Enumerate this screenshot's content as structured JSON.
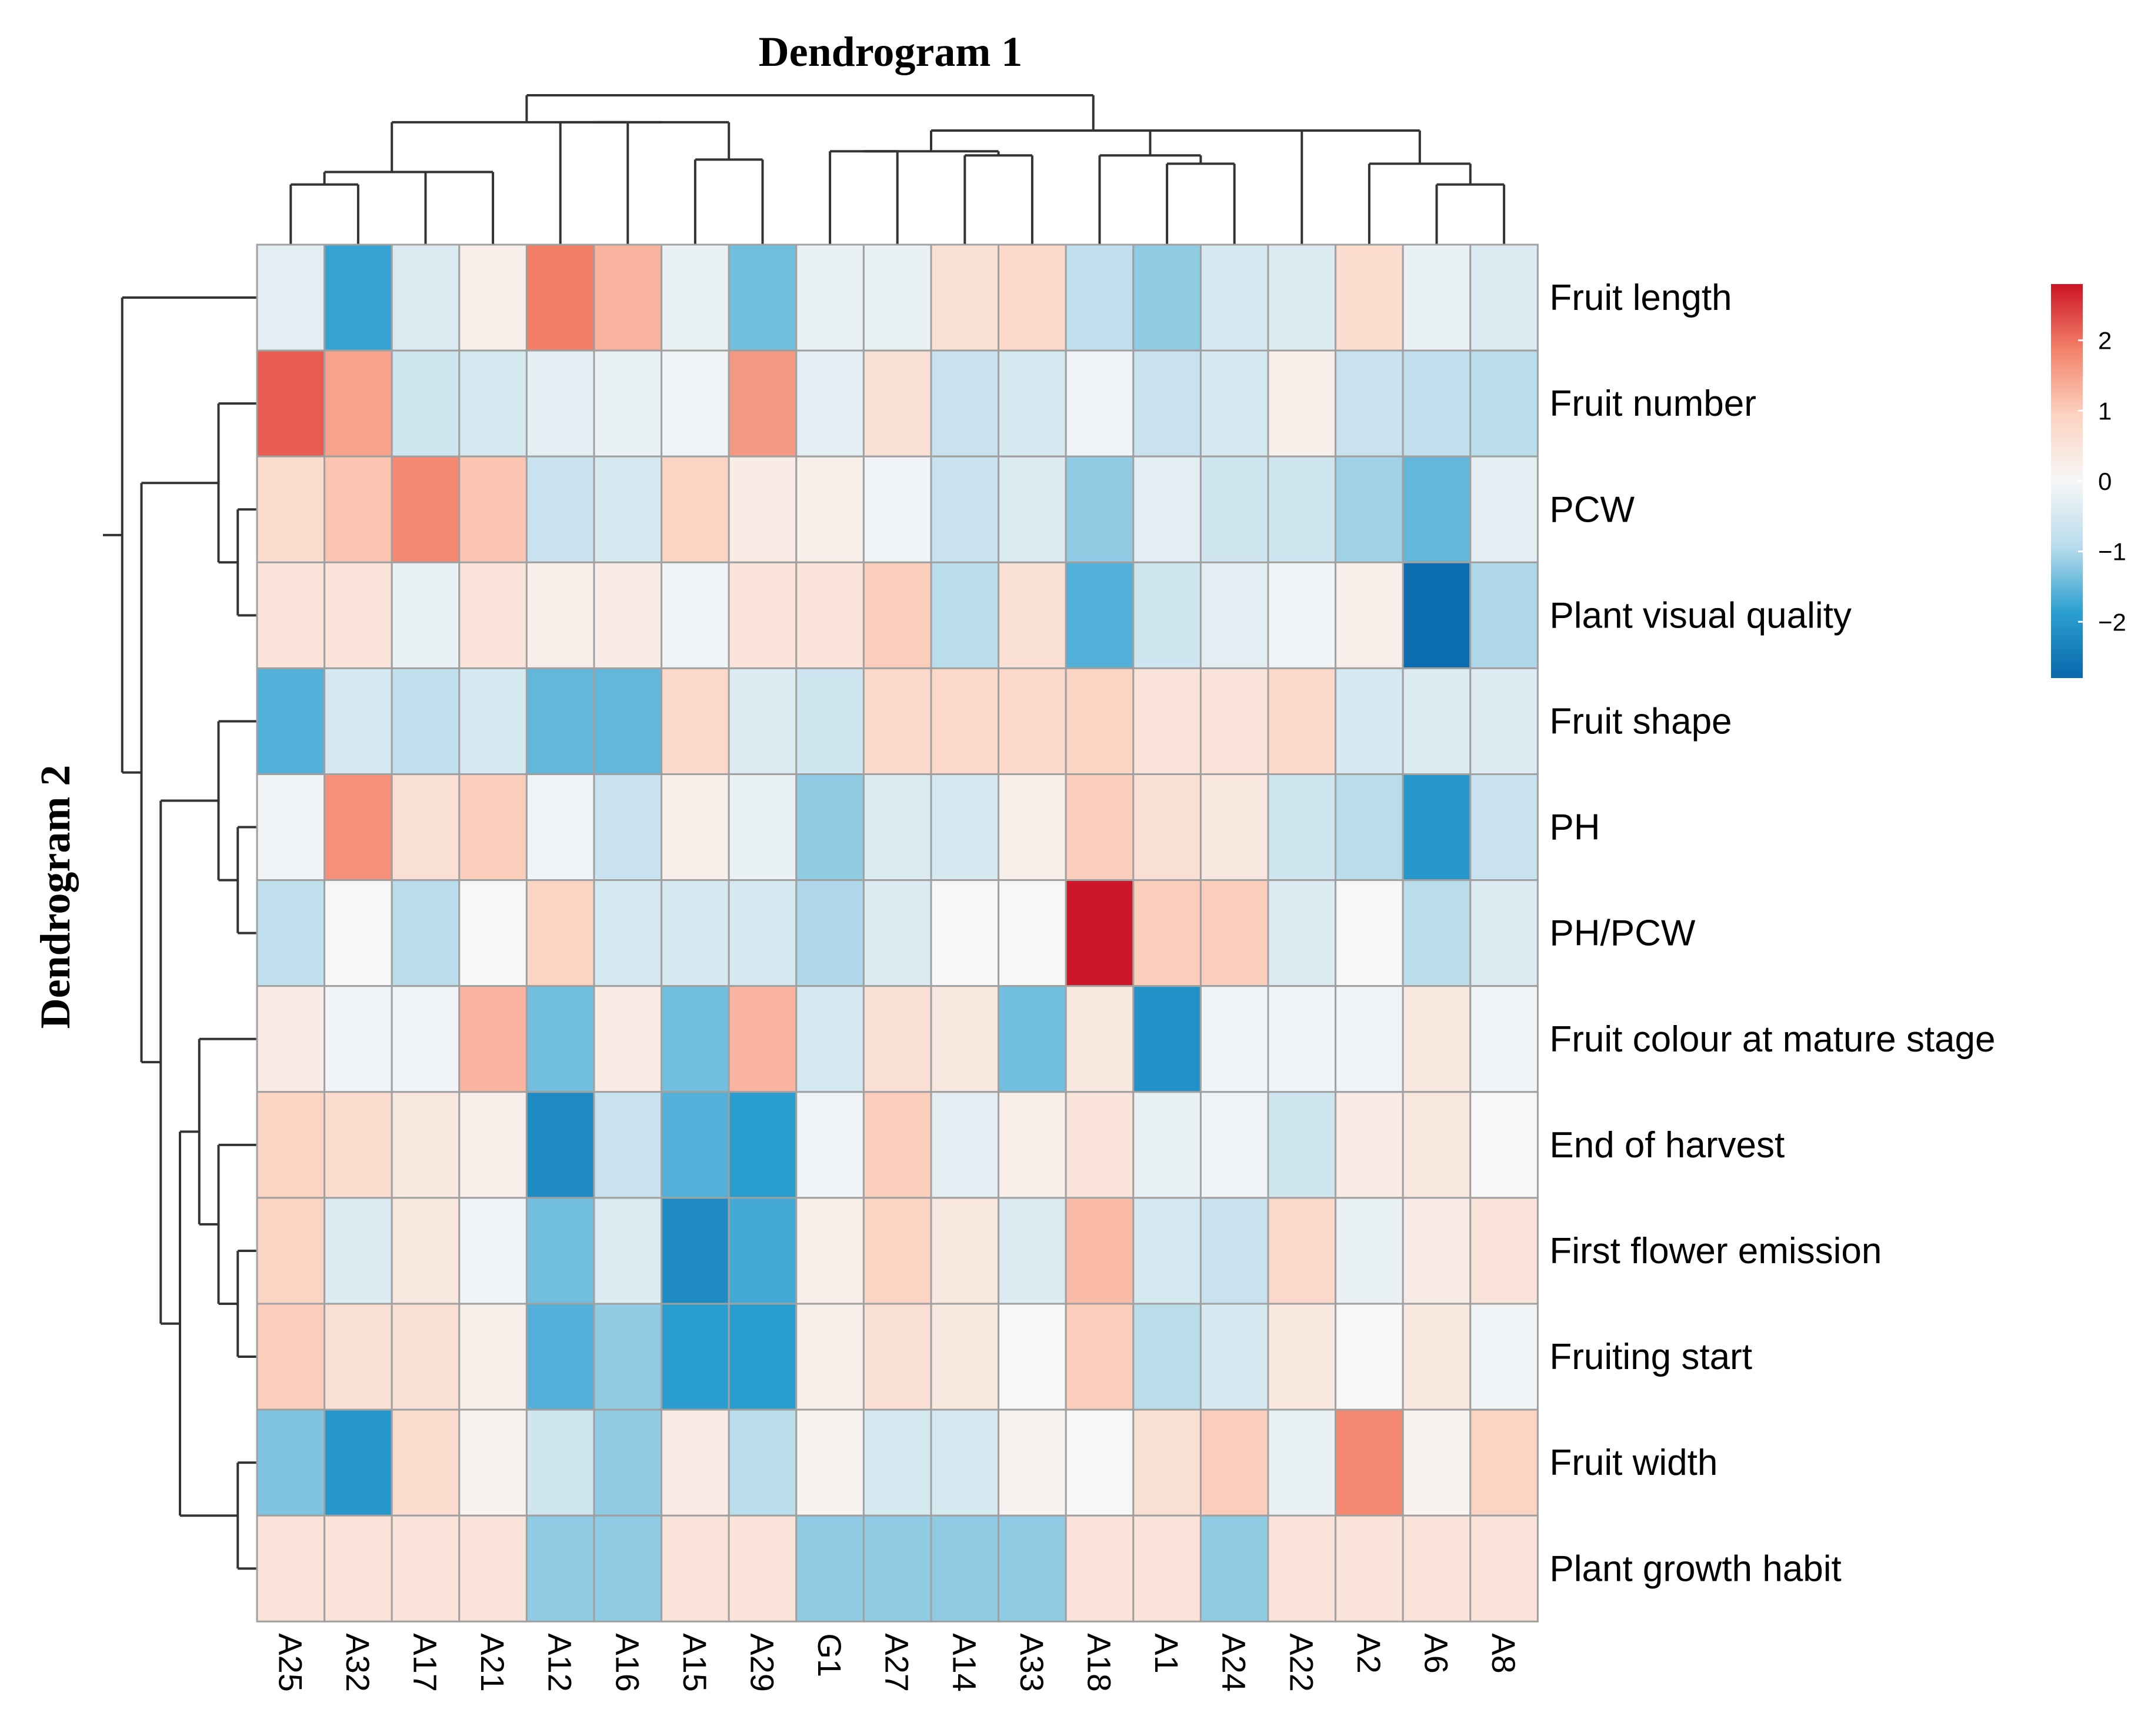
{
  "chart_data": {
    "type": "heatmap",
    "title": "",
    "column_dendrogram_title": "Dendrogram 1",
    "row_dendrogram_title": "Dendrogram 2",
    "columns": [
      "A25",
      "A32",
      "A17",
      "A21",
      "A12",
      "A16",
      "A15",
      "A29",
      "G1",
      "A27",
      "A14",
      "A33",
      "A18",
      "A1",
      "A24",
      "A22",
      "A2",
      "A6",
      "A8"
    ],
    "rows": [
      "Fruit length",
      "Fruit number",
      "PCW",
      "Plant visual quality",
      "Fruit shape",
      "PH",
      "PH/PCW",
      "Fruit colour at mature stage",
      "End of harvest",
      "First flower emission",
      "Fruiting start",
      "Fruit width",
      "Plant growth habit"
    ],
    "values": [
      [
        -0.3,
        -1.8,
        -0.4,
        0.2,
        1.9,
        1.3,
        -0.2,
        -1.4,
        -0.2,
        -0.2,
        0.6,
        0.8,
        -0.8,
        -1.2,
        -0.5,
        -0.4,
        0.7,
        -0.2,
        -0.4
      ],
      [
        2.2,
        1.5,
        -0.6,
        -0.5,
        -0.3,
        -0.2,
        -0.1,
        1.6,
        -0.3,
        0.6,
        -0.7,
        -0.5,
        -0.1,
        -0.7,
        -0.5,
        0.2,
        -0.7,
        -0.8,
        -0.9
      ],
      [
        0.7,
        1.1,
        1.8,
        1.1,
        -0.7,
        -0.5,
        0.9,
        0.3,
        0.2,
        -0.1,
        -0.7,
        -0.4,
        -1.2,
        -0.3,
        -0.6,
        -0.6,
        -1.1,
        -1.5,
        -0.3
      ],
      [
        0.5,
        0.5,
        -0.2,
        0.5,
        0.2,
        0.3,
        -0.1,
        0.5,
        0.5,
        1.0,
        -0.9,
        0.6,
        -1.6,
        -0.6,
        -0.3,
        -0.1,
        0.2,
        -2.7,
        -1.0
      ],
      [
        -1.6,
        -0.5,
        -0.8,
        -0.5,
        -1.5,
        -1.5,
        0.8,
        -0.4,
        -0.6,
        0.8,
        0.8,
        0.8,
        0.9,
        0.5,
        0.5,
        0.8,
        -0.5,
        -0.4,
        -0.4
      ],
      [
        -0.1,
        1.7,
        0.6,
        1.0,
        -0.1,
        -0.7,
        0.2,
        -0.2,
        -1.2,
        -0.4,
        -0.5,
        0.2,
        1.0,
        0.6,
        0.4,
        -0.6,
        -0.9,
        -2.0,
        -0.7
      ],
      [
        -0.8,
        0.0,
        -0.9,
        0.0,
        0.9,
        -0.5,
        -0.5,
        -0.5,
        -1.0,
        -0.4,
        0.0,
        0.0,
        2.8,
        1.0,
        1.0,
        -0.4,
        0.0,
        -0.9,
        -0.4
      ],
      [
        0.3,
        -0.1,
        -0.1,
        1.3,
        -1.4,
        0.3,
        -1.4,
        1.3,
        -0.5,
        0.6,
        0.4,
        -1.4,
        0.4,
        -2.1,
        -0.1,
        -0.1,
        -0.1,
        0.4,
        -0.1
      ],
      [
        0.9,
        0.7,
        0.4,
        0.2,
        -2.2,
        -0.7,
        -1.6,
        -1.9,
        -0.1,
        1.0,
        -0.3,
        0.2,
        0.5,
        -0.2,
        -0.1,
        -0.6,
        0.3,
        0.4,
        0.0
      ],
      [
        0.9,
        -0.4,
        0.4,
        -0.1,
        -1.4,
        -0.4,
        -2.2,
        -1.7,
        0.2,
        0.9,
        0.4,
        -0.4,
        1.2,
        -0.5,
        -0.7,
        0.8,
        -0.2,
        0.3,
        0.5
      ],
      [
        1.0,
        0.6,
        0.6,
        0.2,
        -1.6,
        -1.2,
        -1.9,
        -1.9,
        0.2,
        0.6,
        0.4,
        0.0,
        1.0,
        -0.9,
        -0.5,
        0.4,
        0.0,
        0.4,
        -0.1
      ],
      [
        -1.3,
        -2.0,
        0.7,
        0.1,
        -0.6,
        -1.2,
        0.3,
        -0.9,
        0.1,
        -0.5,
        -0.5,
        0.1,
        0.0,
        0.6,
        1.0,
        -0.2,
        1.8,
        0.1,
        0.9
      ],
      [
        0.5,
        0.5,
        0.5,
        0.5,
        -1.2,
        -1.2,
        0.5,
        0.5,
        -1.2,
        -1.2,
        -1.2,
        -1.2,
        0.5,
        0.5,
        -1.2,
        0.5,
        0.5,
        0.5,
        0.5
      ]
    ],
    "column_tree": [
      [
        [
          [
            "A25",
            "A32"
          ],
          [
            "A17",
            "A21"
          ]
        ],
        [
          [
            "A12",
            "A16"
          ],
          [
            "A15",
            "A29"
          ]
        ]
      ],
      [
        [
          [
            "G1",
            "A27"
          ],
          [
            "A14",
            "A33"
          ]
        ],
        [
          [
            "A18",
            [
              "A1",
              "A24"
            ]
          ],
          [
            "A22",
            [
              "A2",
              [
                "A6",
                "A8"
              ]
            ]
          ]
        ]
      ]
    ],
    "column_tree_heights": [
      [
        [
          [
            1,
            1
          ],
          [
            1.3,
            1.3
          ]
        ],
        [
          [
            2.5,
            1
          ],
          [
            1.6,
            1.6
          ]
        ]
      ],
      [
        [
          [
            1.8,
            1
          ],
          [
            1.7,
            1.7
          ]
        ],
        [
          [
            1.7,
            [
              1.5,
              1
            ]
          ],
          [
            2.3,
            [
              1.5,
              [
                1,
                0.7
              ]
            ]
          ]
        ]
      ]
    ],
    "column_root_height": 3.6,
    "row_tree": [
      [
        "Fruit length",
        [
          [
            "Fruit number",
            [
              "PCW",
              "Plant visual quality"
            ]
          ],
          [
            [
              "Fruit shape",
              [
                "PH",
                "PH/PCW"
              ]
            ],
            [
              [
                "Fruit colour at mature stage",
                [
                  "End of harvest",
                  [
                    "First flower emission",
                    "Fruiting start"
                  ]
                ]
              ],
              [
                "Fruit width",
                "Plant growth habit"
              ]
            ]
          ]
        ]
      ]
    ],
    "color_scale": {
      "min": -2.8,
      "max": 2.8,
      "ticks": [
        2,
        1,
        0,
        -1,
        -2
      ],
      "tick_labels": [
        "2",
        "1",
        "0",
        "−1",
        "−2"
      ],
      "colors": [
        "#0868ac",
        "#2b9fd0",
        "#b8dcec",
        "#f7f7f7",
        "#fcd3c1",
        "#f4826a",
        "#cc1526"
      ]
    }
  }
}
